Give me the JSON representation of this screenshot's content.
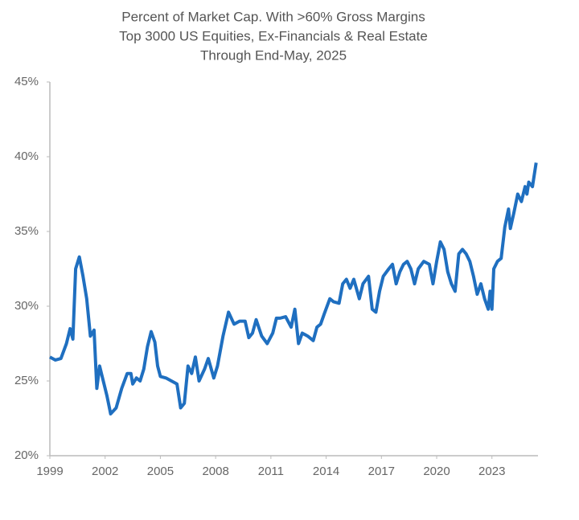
{
  "chart_data": {
    "type": "line",
    "title": "Percent of Market Cap. With >60% Gross Margins",
    "subtitle": [
      "Top 3000 US Equities, Ex-Financials & Real Estate",
      "Through End-May, 2025"
    ],
    "xlim": [
      1999,
      2025.5
    ],
    "xticks": [
      1999,
      2002,
      2005,
      2008,
      2011,
      2014,
      2017,
      2020,
      2023
    ],
    "ylim": [
      20,
      45
    ],
    "yticks": [
      {
        "value": 20,
        "label": "20%"
      },
      {
        "value": 25,
        "label": "25%"
      },
      {
        "value": 30,
        "label": "30%"
      },
      {
        "value": 35,
        "label": "35%"
      },
      {
        "value": 40,
        "label": "40%"
      },
      {
        "value": 45,
        "label": "45%"
      }
    ],
    "grid": false,
    "series": [
      {
        "color": "#1f6fc0",
        "x": [
          1999.0,
          1999.3,
          1999.6,
          1999.9,
          2000.1,
          2000.25,
          2000.4,
          2000.6,
          2000.8,
          2001.0,
          2001.2,
          2001.4,
          2001.55,
          2001.7,
          2001.9,
          2002.1,
          2002.3,
          2002.6,
          2002.9,
          2003.2,
          2003.4,
          2003.5,
          2003.7,
          2003.9,
          2004.1,
          2004.3,
          2004.5,
          2004.7,
          2004.85,
          2005.0,
          2005.3,
          2005.6,
          2005.9,
          2006.1,
          2006.3,
          2006.5,
          2006.7,
          2006.9,
          2007.1,
          2007.4,
          2007.6,
          2007.9,
          2008.1,
          2008.4,
          2008.7,
          2009.0,
          2009.3,
          2009.6,
          2009.8,
          2010.0,
          2010.2,
          2010.5,
          2010.8,
          2011.1,
          2011.3,
          2011.5,
          2011.8,
          2012.1,
          2012.3,
          2012.5,
          2012.7,
          2013.0,
          2013.3,
          2013.5,
          2013.7,
          2013.9,
          2014.2,
          2014.4,
          2014.7,
          2014.9,
          2015.1,
          2015.3,
          2015.5,
          2015.8,
          2016.0,
          2016.3,
          2016.5,
          2016.7,
          2016.9,
          2017.1,
          2017.4,
          2017.6,
          2017.8,
          2018.0,
          2018.2,
          2018.4,
          2018.6,
          2018.8,
          2019.0,
          2019.3,
          2019.6,
          2019.8,
          2020.0,
          2020.2,
          2020.4,
          2020.6,
          2020.8,
          2021.0,
          2021.2,
          2021.4,
          2021.6,
          2021.8,
          2022.0,
          2022.2,
          2022.4,
          2022.6,
          2022.8,
          2022.9,
          2023.0,
          2023.1,
          2023.3,
          2023.5,
          2023.7,
          2023.9,
          2024.0,
          2024.2,
          2024.4,
          2024.6,
          2024.8,
          2024.9,
          2025.0,
          2025.2,
          2025.4
        ],
        "values": [
          26.6,
          26.4,
          26.5,
          27.5,
          28.5,
          27.8,
          32.5,
          33.3,
          32.0,
          30.5,
          28.0,
          28.4,
          24.5,
          26.0,
          25.0,
          24.0,
          22.8,
          23.2,
          24.5,
          25.5,
          25.5,
          24.8,
          25.2,
          25.0,
          25.8,
          27.3,
          28.3,
          27.6,
          26.0,
          25.3,
          25.2,
          25.0,
          24.8,
          23.2,
          23.5,
          26.0,
          25.5,
          26.6,
          25.0,
          25.8,
          26.5,
          25.2,
          26.0,
          28.0,
          29.6,
          28.8,
          29.0,
          29.0,
          27.9,
          28.2,
          29.1,
          28.0,
          27.5,
          28.2,
          29.2,
          29.2,
          29.3,
          28.6,
          29.8,
          27.5,
          28.2,
          28.0,
          27.7,
          28.6,
          28.8,
          29.5,
          30.5,
          30.3,
          30.2,
          31.5,
          31.8,
          31.2,
          31.8,
          30.5,
          31.5,
          32.0,
          29.8,
          29.6,
          31.0,
          32.0,
          32.5,
          32.8,
          31.5,
          32.3,
          32.8,
          33.0,
          32.5,
          31.5,
          32.5,
          33.0,
          32.8,
          31.5,
          33.0,
          34.3,
          33.8,
          32.3,
          31.5,
          31.0,
          33.5,
          33.8,
          33.5,
          33.0,
          32.0,
          30.8,
          31.5,
          30.5,
          29.8,
          31.0,
          29.8,
          32.5,
          33.0,
          33.2,
          35.3,
          36.5,
          35.2,
          36.3,
          37.5,
          37.0,
          38.0,
          37.5,
          38.3,
          38.0,
          39.6
        ]
      }
    ]
  }
}
